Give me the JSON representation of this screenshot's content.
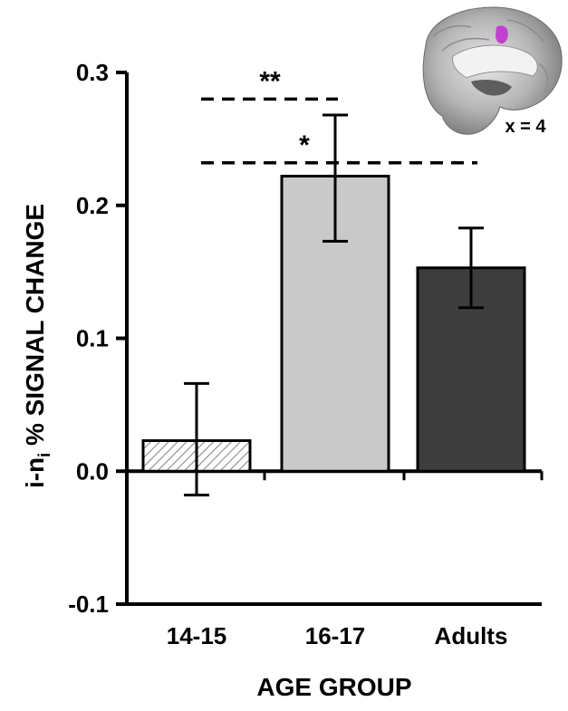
{
  "chart_data": {
    "type": "bar",
    "title": "",
    "xlabel": "AGE GROUP",
    "ylabel": {
      "main": "i-n",
      "subscript": "i",
      "rest": " % SIGNAL CHANGE"
    },
    "ylim": [
      -0.1,
      0.3
    ],
    "yticks": [
      -0.1,
      0.0,
      0.1,
      0.2,
      0.3
    ],
    "ytick_labels": [
      "-0.1",
      "0.0",
      "0.1",
      "0.2",
      "0.3"
    ],
    "categories": [
      "14-15",
      "16-17",
      "Adults"
    ],
    "values": [
      0.023,
      0.222,
      0.153
    ],
    "error_low": [
      -0.018,
      0.173,
      0.123
    ],
    "error_high": [
      0.066,
      0.268,
      0.183
    ],
    "bar_styles": [
      "hatched",
      "light",
      "dark"
    ],
    "significance": [
      {
        "label": "**",
        "from": "14-15",
        "to": "16-17",
        "y": 0.28
      },
      {
        "label": "*",
        "from": "14-15",
        "to": "Adults",
        "y": 0.232
      }
    ],
    "grid": false
  },
  "inset": {
    "label": "x = 4",
    "description_icon": "brain-sagittal-icon"
  },
  "colors": {
    "light_bar": "#c9c9c9",
    "dark_bar": "#3d3d3d",
    "hatch": "#8a8a8a",
    "highlight": "#c040d0"
  }
}
